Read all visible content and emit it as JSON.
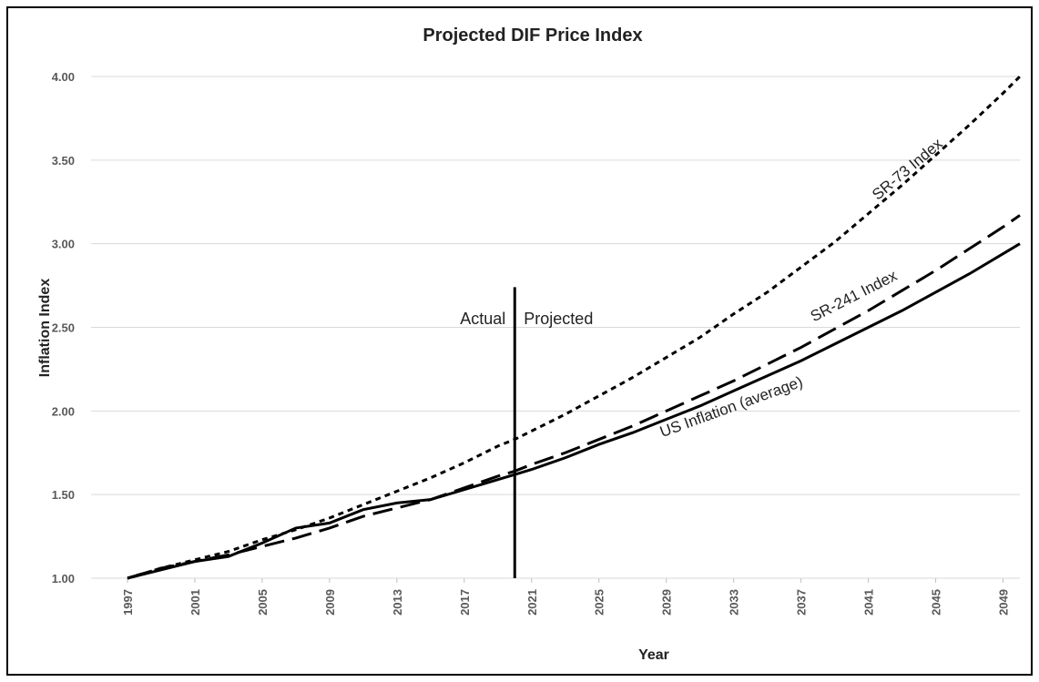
{
  "chart_data": {
    "type": "line",
    "title": "Projected DIF Price Index",
    "x_label": "Year",
    "y_label": "Inflation Index",
    "x": [
      1997,
      1999,
      2001,
      2003,
      2005,
      2007,
      2009,
      2011,
      2013,
      2015,
      2017,
      2019,
      2020,
      2021,
      2023,
      2025,
      2027,
      2029,
      2031,
      2033,
      2035,
      2037,
      2039,
      2041,
      2043,
      2045,
      2047,
      2049,
      2050
    ],
    "series": [
      {
        "name": "SR-73 Index",
        "color": "#000000",
        "dash": "short",
        "values": [
          1.0,
          1.06,
          1.11,
          1.16,
          1.23,
          1.29,
          1.36,
          1.44,
          1.52,
          1.6,
          1.69,
          1.79,
          1.83,
          1.88,
          1.98,
          2.09,
          2.2,
          2.32,
          2.44,
          2.58,
          2.71,
          2.86,
          3.01,
          3.18,
          3.35,
          3.53,
          3.71,
          3.9,
          4.0
        ]
      },
      {
        "name": "SR-241 Index",
        "color": "#000000",
        "dash": "long",
        "values": [
          1.0,
          1.06,
          1.1,
          1.14,
          1.19,
          1.24,
          1.3,
          1.37,
          1.42,
          1.47,
          1.54,
          1.61,
          1.64,
          1.68,
          1.75,
          1.83,
          1.91,
          2.0,
          2.09,
          2.18,
          2.28,
          2.38,
          2.49,
          2.6,
          2.72,
          2.84,
          2.97,
          3.1,
          3.17
        ]
      },
      {
        "name": "US Inflation (average)",
        "color": "#000000",
        "dash": "solid",
        "values": [
          1.0,
          1.05,
          1.1,
          1.13,
          1.21,
          1.3,
          1.33,
          1.41,
          1.45,
          1.47,
          1.53,
          1.59,
          1.62,
          1.65,
          1.72,
          1.8,
          1.87,
          1.95,
          2.03,
          2.12,
          2.21,
          2.3,
          2.4,
          2.5,
          2.6,
          2.71,
          2.82,
          2.94,
          3.0
        ]
      }
    ],
    "xlim": [
      1997,
      2050
    ],
    "xticks": [
      1997,
      2001,
      2005,
      2009,
      2013,
      2017,
      2021,
      2025,
      2029,
      2033,
      2037,
      2041,
      2045,
      2049
    ],
    "ylim": [
      1,
      4
    ],
    "yticks": [
      {
        "value": 1,
        "label": "1.00"
      },
      {
        "value": 1.5,
        "label": "1.50"
      },
      {
        "value": 2,
        "label": "2.00"
      },
      {
        "value": 2.5,
        "label": "2.50"
      },
      {
        "value": 3,
        "label": "3.00"
      },
      {
        "value": 3.5,
        "label": "3.50"
      },
      {
        "value": 4,
        "label": "4.00"
      }
    ],
    "grid": true,
    "divider": {
      "x": 2020,
      "top": 2.74,
      "left_label": "Actual",
      "right_label": "Projected"
    }
  }
}
